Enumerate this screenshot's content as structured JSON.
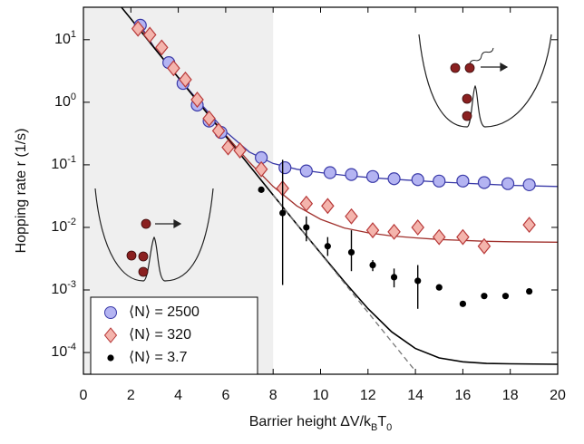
{
  "chart_data": {
    "type": "scatter",
    "xlabel": "Barrier height ΔV/k_BT_0",
    "ylabel": "Hopping rate r (1/s)",
    "log_y": true,
    "xlim": [
      0,
      20
    ],
    "ylim": [
      4.5e-05,
      33
    ],
    "xticks": [
      0,
      2,
      4,
      6,
      8,
      10,
      12,
      14,
      16,
      18,
      20
    ],
    "yticks": [
      {
        "value": 0.0001,
        "label": "10^-4"
      },
      {
        "value": 0.001,
        "label": "10^-3"
      },
      {
        "value": 0.01,
        "label": "10^-2"
      },
      {
        "value": 0.1,
        "label": "10^-1"
      },
      {
        "value": 1,
        "label": "10^0"
      },
      {
        "value": 10,
        "label": "10^1"
      }
    ],
    "shade": [
      0,
      8
    ],
    "legend": "lower left",
    "series": [
      {
        "name": "⟨N⟩ = 2500",
        "marker": "circle",
        "color": "#3a3aa8",
        "fill": "#b4b4f2",
        "x": [
          2.4,
          3.6,
          4.2,
          4.8,
          5.3,
          5.8,
          7.5,
          8.5,
          9.4,
          10.4,
          11.3,
          12.2,
          13.1,
          14.1,
          15.0,
          16.0,
          16.9,
          17.9,
          18.8
        ],
        "values": [
          17,
          4.3,
          2.0,
          0.9,
          0.5,
          0.33,
          0.13,
          0.09,
          0.08,
          0.075,
          0.07,
          0.065,
          0.06,
          0.058,
          0.055,
          0.055,
          0.052,
          0.05,
          0.048
        ]
      },
      {
        "name": "⟨N⟩ = 320",
        "marker": "diamond",
        "color": "#b83a3a",
        "fill": "#f4b4ac",
        "x": [
          2.3,
          2.8,
          3.3,
          3.8,
          4.3,
          4.8,
          5.3,
          5.7,
          6.1,
          6.6,
          7.5,
          8.4,
          9.4,
          10.3,
          11.3,
          12.2,
          13.1,
          14.1,
          15.0,
          16.0,
          16.9,
          18.8
        ],
        "values": [
          15,
          12,
          7.5,
          3.5,
          2.3,
          1.1,
          0.55,
          0.35,
          0.19,
          0.17,
          0.085,
          0.042,
          0.024,
          0.022,
          0.015,
          0.009,
          0.0085,
          0.01,
          0.007,
          0.007,
          0.005,
          0.011
        ]
      },
      {
        "name": "⟨N⟩ = 3.7",
        "marker": "dot",
        "color": "#000000",
        "x": [
          7.5,
          8.4,
          9.4,
          10.3,
          11.3,
          12.2,
          13.1,
          14.1,
          15.0,
          16.0,
          16.9,
          17.8,
          18.8
        ],
        "values": [
          0.04,
          0.017,
          0.01,
          0.005,
          0.004,
          0.0025,
          0.0016,
          0.0014,
          0.0011,
          0.0006,
          0.0008,
          0.0008,
          0.00095
        ],
        "lower": [
          null,
          0.0012,
          0.006,
          0.0035,
          0.002,
          0.002,
          0.0011,
          0.0005,
          null,
          null,
          null,
          null,
          null
        ],
        "upper": [
          null,
          0.12,
          0.015,
          0.007,
          0.009,
          0.003,
          0.0022,
          0.0025,
          null,
          null,
          null,
          null,
          null
        ]
      }
    ],
    "curves": [
      {
        "color": "#3a3aa8",
        "width": 1.3,
        "x": [
          2.4,
          3,
          4,
          5,
          6,
          7,
          8,
          9,
          10,
          11,
          12,
          13,
          14,
          15,
          16,
          17,
          18,
          19,
          20
        ],
        "values": [
          17,
          7.4,
          2.5,
          0.9,
          0.34,
          0.16,
          0.105,
          0.085,
          0.075,
          0.068,
          0.063,
          0.059,
          0.056,
          0.053,
          0.051,
          0.049,
          0.047,
          0.046,
          0.045
        ]
      },
      {
        "color": "#a0302c",
        "width": 1.3,
        "x": [
          2.3,
          3,
          4,
          5,
          6,
          7,
          8,
          9,
          10,
          11,
          12,
          13,
          14,
          15,
          16,
          17,
          18,
          20
        ],
        "values": [
          18,
          7.3,
          2.5,
          0.85,
          0.3,
          0.11,
          0.045,
          0.022,
          0.0135,
          0.0098,
          0.0082,
          0.0073,
          0.0068,
          0.0064,
          0.0062,
          0.006,
          0.0059,
          0.0058
        ]
      },
      {
        "color": "#000000",
        "width": 1.6,
        "x": [
          1.6,
          2,
          3,
          4,
          5,
          6,
          7,
          8,
          9,
          10,
          11,
          12,
          13,
          14,
          15,
          16,
          17,
          18,
          20
        ],
        "values": [
          33.1,
          21.5,
          7.3,
          2.48,
          0.842,
          0.286,
          0.0971,
          0.033,
          0.0112,
          0.00388,
          0.00136,
          0.000504,
          0.000214,
          0.000116,
          8.2e-05,
          7.1e-05,
          6.7e-05,
          6.6e-05,
          6.5e-05
        ]
      },
      {
        "color": "#777777",
        "width": 1.3,
        "dash": true,
        "x": [
          8,
          9,
          10,
          11,
          12,
          13,
          14
        ],
        "values": [
          0.033,
          0.0112,
          0.00381,
          0.00129,
          0.000439,
          0.000149,
          5.06e-05
        ]
      }
    ]
  }
}
